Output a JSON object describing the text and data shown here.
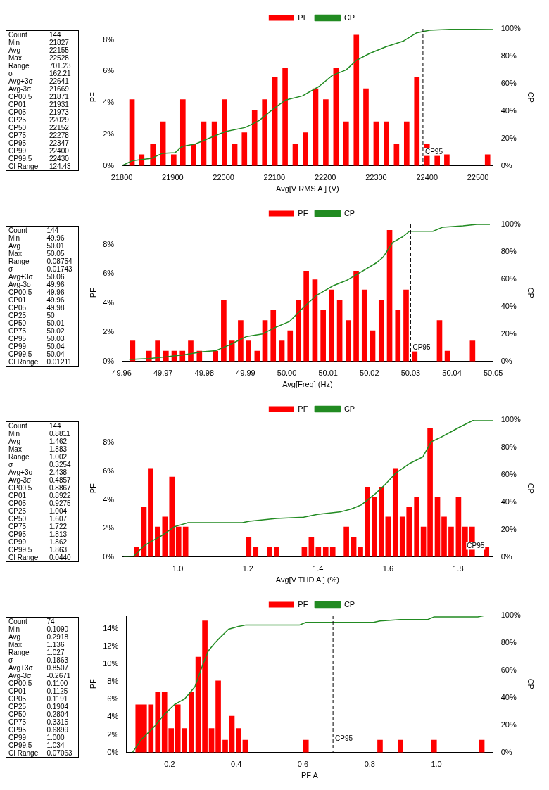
{
  "chart_data": [
    {
      "type": "bar",
      "xlabel": "Avg[V RMS A ] (V)",
      "ylabel": "PF",
      "y2label": "CP",
      "legend": "top",
      "grid": false,
      "marker": "none",
      "xlim": [
        21800,
        22530
      ],
      "xticks": [
        21800,
        21900,
        22000,
        22100,
        22200,
        22300,
        22400,
        22500
      ],
      "ylim": [
        0,
        8.7
      ],
      "yticks": [
        {
          "value": 0,
          "label": "0%"
        },
        {
          "value": 2,
          "label": "2%"
        },
        {
          "value": 4,
          "label": "4%"
        },
        {
          "value": 6,
          "label": "6%"
        },
        {
          "value": 8,
          "label": "8%"
        }
      ],
      "y2lim": [
        0,
        100
      ],
      "y2ticks": [
        {
          "value": 0,
          "label": "0%"
        },
        {
          "value": 20,
          "label": "20%"
        },
        {
          "value": 40,
          "label": "40%"
        },
        {
          "value": 60,
          "label": "60%"
        },
        {
          "value": 80,
          "label": "80%"
        },
        {
          "value": 100,
          "label": "100%"
        }
      ],
      "series": [
        {
          "name": "PF",
          "color": "#ff0000",
          "x": [
            21820,
            21839,
            21861,
            21881,
            21902,
            21920,
            21941,
            21961,
            21982,
            22002,
            22022,
            22041,
            22061,
            22081,
            22101,
            22121,
            22141,
            22161,
            22181,
            22201,
            22221,
            22241,
            22261,
            22280,
            22300,
            22320,
            22340,
            22360,
            22380,
            22400,
            22420,
            22439,
            22519
          ],
          "values": [
            4.2,
            0.7,
            1.4,
            2.8,
            0.7,
            4.2,
            1.4,
            2.8,
            2.8,
            4.2,
            1.4,
            2.1,
            3.5,
            4.2,
            5.6,
            6.2,
            1.4,
            2.1,
            4.9,
            4.2,
            6.2,
            2.8,
            8.3,
            4.9,
            2.8,
            2.8,
            1.4,
            2.8,
            5.6,
            1.4,
            0.7,
            0.7,
            0.7
          ]
        },
        {
          "name": "CP",
          "type": "line",
          "axis": "y2",
          "color": "#228b22",
          "x": [
            21800,
            21820,
            21859,
            21879,
            21905,
            21918,
            21945,
            21984,
            22004,
            22043,
            22070,
            22096,
            22122,
            22155,
            22188,
            22214,
            22241,
            22261,
            22287,
            22320,
            22353,
            22379,
            22405,
            22451,
            22530
          ],
          "values": [
            0,
            3.6,
            5.5,
            9,
            9.6,
            14,
            16,
            22,
            25,
            28,
            33,
            41,
            48,
            51,
            58,
            66,
            70,
            77,
            82,
            87,
            91,
            97,
            99,
            99.7,
            100
          ]
        }
      ],
      "ref_lines": [
        {
          "axis": "x",
          "value": 22392,
          "label": "CP95",
          "line_style": "dashed",
          "color": "#000000"
        }
      ],
      "annotations": [
        "Count 144",
        "Min 21827",
        "Avg 22155",
        "Max 22528",
        "Range 701.23",
        "σ 162.21",
        "Avg+3σ 22641",
        "Avg-3σ 21669",
        "CP00.5 21871",
        "CP01 21931",
        "CP05 21973",
        "CP25 22029",
        "CP50 22152",
        "CP75 22278",
        "CP95 22347",
        "CP99 22400",
        "CP99.5 22430",
        "CI Range 124.43"
      ]
    },
    {
      "type": "bar",
      "xlabel": "Avg[Freq] (Hz)",
      "ylabel": "PF",
      "y2label": "CP",
      "legend": "top",
      "grid": false,
      "marker": "none",
      "xlim": [
        49.96,
        50.05
      ],
      "xticks": [
        {
          "value": 49.96,
          "label": "49.96"
        },
        {
          "value": 49.97,
          "label": "49.97"
        },
        {
          "value": 49.98,
          "label": "49.98"
        },
        {
          "value": 49.99,
          "label": "49.99"
        },
        {
          "value": 50,
          "label": "50.00"
        },
        {
          "value": 50.01,
          "label": "50.01"
        },
        {
          "value": 50.02,
          "label": "50.02"
        },
        {
          "value": 50.03,
          "label": "50.03"
        },
        {
          "value": 50.04,
          "label": "50.04"
        },
        {
          "value": 50.05,
          "label": "50.05"
        }
      ],
      "ylim": [
        0,
        9.4
      ],
      "yticks": [
        {
          "value": 0,
          "label": "0%"
        },
        {
          "value": 2,
          "label": "2%"
        },
        {
          "value": 4,
          "label": "4%"
        },
        {
          "value": 6,
          "label": "6%"
        },
        {
          "value": 8,
          "label": "8%"
        }
      ],
      "y2lim": [
        0,
        100
      ],
      "y2ticks": [
        {
          "value": 0,
          "label": "0%"
        },
        {
          "value": 20,
          "label": "20%"
        },
        {
          "value": 40,
          "label": "40%"
        },
        {
          "value": 60,
          "label": "60%"
        },
        {
          "value": 80,
          "label": "80%"
        },
        {
          "value": 100,
          "label": "100%"
        }
      ],
      "series": [
        {
          "name": "PF",
          "color": "#ff0000",
          "x": [
            49.9626,
            49.9666,
            49.9687,
            49.9707,
            49.9727,
            49.9747,
            49.9767,
            49.9788,
            49.9827,
            49.9847,
            49.9867,
            49.9888,
            49.9907,
            49.9928,
            49.9947,
            49.9967,
            49.9988,
            50.0008,
            50.0028,
            50.0047,
            50.0068,
            50.0088,
            50.0108,
            50.0128,
            50.0149,
            50.0168,
            50.0188,
            50.0208,
            50.0229,
            50.0249,
            50.0269,
            50.0289,
            50.031,
            50.037,
            50.0389,
            50.045
          ],
          "values": [
            1.4,
            0.7,
            1.4,
            0.7,
            0.7,
            0.7,
            1.4,
            0.7,
            0.7,
            4.2,
            1.4,
            2.8,
            1.4,
            0.7,
            2.8,
            3.5,
            1.4,
            2.1,
            4.2,
            6.2,
            5.6,
            3.5,
            4.9,
            4.2,
            2.8,
            6.2,
            4.9,
            2.1,
            4.2,
            9,
            3.5,
            4.9,
            0.7,
            2.8,
            0.7,
            1.4
          ]
        },
        {
          "name": "CP",
          "type": "line",
          "axis": "y2",
          "color": "#228b22",
          "x": [
            49.9618,
            49.9666,
            49.9707,
            49.9747,
            49.9796,
            49.9828,
            49.9861,
            49.9901,
            49.9941,
            49.9974,
            50.0006,
            50.0039,
            50.0071,
            50.0111,
            50.0144,
            50.0184,
            50.0217,
            50.0233,
            50.0257,
            50.0281,
            50.0297,
            50.0354,
            50.0378,
            50.0427,
            50.046,
            50.0492
          ],
          "values": [
            1.3,
            2,
            3.3,
            4.6,
            7,
            7.8,
            12,
            18,
            20,
            25,
            29,
            39,
            48,
            55,
            59,
            66,
            72,
            76,
            87,
            91,
            95,
            95,
            98,
            99,
            100,
            100
          ]
        }
      ],
      "ref_lines": [
        {
          "axis": "x",
          "value": 50.03,
          "label": "CP95",
          "line_style": "dashed",
          "color": "#000000"
        }
      ],
      "annotations": [
        "Count 144",
        "Min 49.96",
        "Avg 50.01",
        "Max 50.05",
        "Range 0.08754",
        "σ 0.01743",
        "Avg+3σ 50.06",
        "Avg-3σ 49.96",
        "CP00.5 49.96",
        "CP01 49.96",
        "CP05 49.98",
        "CP25 50",
        "CP50 50.01",
        "CP75 50.02",
        "CP95 50.03",
        "CP99 50.04",
        "CP99.5 50.04",
        "CI Range 0.01211"
      ]
    },
    {
      "type": "bar",
      "xlabel": "Avg[V THD A ] (%)",
      "ylabel": "PF",
      "y2label": "CP",
      "legend": "top",
      "grid": false,
      "marker": "none",
      "xlim": [
        0.84,
        1.9
      ],
      "xticks": [
        {
          "value": 1,
          "label": "1.0"
        },
        {
          "value": 1.2,
          "label": "1.2"
        },
        {
          "value": 1.4,
          "label": "1.4"
        },
        {
          "value": 1.6,
          "label": "1.6"
        },
        {
          "value": 1.8,
          "label": "1.8"
        }
      ],
      "ylim": [
        0,
        9.6
      ],
      "yticks": [
        {
          "value": 0,
          "label": "0%"
        },
        {
          "value": 2,
          "label": "2%"
        },
        {
          "value": 4,
          "label": "4%"
        },
        {
          "value": 6,
          "label": "6%"
        },
        {
          "value": 8,
          "label": "8%"
        }
      ],
      "y2lim": [
        0,
        100
      ],
      "y2ticks": [
        {
          "value": 0,
          "label": "0%"
        },
        {
          "value": 20,
          "label": "20%"
        },
        {
          "value": 40,
          "label": "40%"
        },
        {
          "value": 60,
          "label": "60%"
        },
        {
          "value": 80,
          "label": "80%"
        },
        {
          "value": 100,
          "label": "100%"
        }
      ],
      "series": [
        {
          "name": "PF",
          "color": "#ff0000",
          "x": [
            0.882,
            0.903,
            0.922,
            0.942,
            0.963,
            0.983,
            1.002,
            1.022,
            1.202,
            1.222,
            1.262,
            1.282,
            1.361,
            1.381,
            1.401,
            1.422,
            1.442,
            1.481,
            1.502,
            1.521,
            1.541,
            1.561,
            1.581,
            1.6,
            1.621,
            1.641,
            1.66,
            1.682,
            1.701,
            1.72,
            1.741,
            1.76,
            1.78,
            1.801,
            1.82,
            1.84,
            1.881
          ],
          "values": [
            0.7,
            3.5,
            6.2,
            2.1,
            2.8,
            5.6,
            2.1,
            2.1,
            1.4,
            0.7,
            0.7,
            0.7,
            0.7,
            1.4,
            0.7,
            0.7,
            0.7,
            2.1,
            1.4,
            0.7,
            4.9,
            4.2,
            4.9,
            2.8,
            6.2,
            2.8,
            3.5,
            4.2,
            2.1,
            9,
            4.2,
            2.8,
            2.1,
            4.2,
            2.1,
            2.1,
            0.7
          ]
        },
        {
          "name": "CP",
          "type": "line",
          "axis": "y2",
          "color": "#228b22",
          "x": [
            0.845,
            0.874,
            0.903,
            0.922,
            0.951,
            0.99,
            1.029,
            1.107,
            1.184,
            1.204,
            1.282,
            1.359,
            1.398,
            1.466,
            1.495,
            1.524,
            1.563,
            1.592,
            1.621,
            1.66,
            1.699,
            1.723,
            1.748,
            1.777,
            1.806,
            1.845,
            1.9
          ],
          "values": [
            0,
            0.5,
            8,
            11,
            15,
            22,
            25,
            25,
            25,
            26,
            28,
            29,
            31,
            33,
            35,
            38,
            46,
            53,
            61,
            68,
            73,
            84,
            87,
            91,
            95,
            100,
            100
          ]
        }
      ],
      "annotations": [
        {
          "text": "CP95",
          "x": 1.85,
          "y": 0.4
        },
        "Count 144",
        "Min 0.8811",
        "Avg 1.462",
        "Max 1.883",
        "Range 1.002",
        "σ 0.3254",
        "Avg+3σ 2.438",
        "Avg-3σ 0.4857",
        "CP00.5 0.8867",
        "CP01 0.8922",
        "CP05 0.9275",
        "CP25 1.004",
        "CP50 1.607",
        "CP75 1.722",
        "CP95 1.813",
        "CP99 1.862",
        "CP99.5 1.863",
        "CI Range 0.0440"
      ]
    },
    {
      "type": "bar",
      "xlabel": "PF A",
      "ylabel": "PF",
      "y2label": "CP",
      "legend": "top",
      "grid": false,
      "marker": "none",
      "xlim": [
        0.07,
        1.17
      ],
      "xticks": [
        {
          "value": 0.2,
          "label": "0.2"
        },
        {
          "value": 0.4,
          "label": "0.4"
        },
        {
          "value": 0.6,
          "label": "0.6"
        },
        {
          "value": 0.8,
          "label": "0.8"
        },
        {
          "value": 1,
          "label": "1.0"
        }
      ],
      "ylim": [
        0,
        15.5
      ],
      "yticks": [
        {
          "value": 0,
          "label": "0%"
        },
        {
          "value": 2,
          "label": "2%"
        },
        {
          "value": 4,
          "label": "4%"
        },
        {
          "value": 6,
          "label": "6%"
        },
        {
          "value": 8,
          "label": "8%"
        },
        {
          "value": 10,
          "label": "10%"
        },
        {
          "value": 12,
          "label": "12%"
        },
        {
          "value": 14,
          "label": "14%"
        }
      ],
      "y2lim": [
        0,
        100
      ],
      "y2ticks": [
        {
          "value": 0,
          "label": "0%"
        },
        {
          "value": 20,
          "label": "20%"
        },
        {
          "value": 40,
          "label": "40%"
        },
        {
          "value": 60,
          "label": "60%"
        },
        {
          "value": 80,
          "label": "80%"
        },
        {
          "value": 100,
          "label": "100%"
        }
      ],
      "series": [
        {
          "name": "PF",
          "color": "#ff0000",
          "x": [
            0.106,
            0.124,
            0.144,
            0.165,
            0.185,
            0.205,
            0.225,
            0.245,
            0.266,
            0.286,
            0.306,
            0.326,
            0.346,
            0.367,
            0.387,
            0.407,
            0.427,
            0.609,
            0.831,
            0.892,
            0.993,
            1.136
          ],
          "values": [
            5.4,
            5.4,
            5.4,
            6.8,
            6.8,
            2.7,
            5.4,
            2.7,
            6.8,
            10.8,
            14.9,
            2.7,
            8.1,
            1.4,
            4.1,
            2.7,
            1.4,
            1.4,
            1.4,
            1.4,
            1.4,
            1.4
          ]
        },
        {
          "name": "CP",
          "type": "line",
          "axis": "y2",
          "color": "#228b22",
          "x": [
            0.089,
            0.114,
            0.155,
            0.185,
            0.215,
            0.245,
            0.276,
            0.301,
            0.316,
            0.336,
            0.352,
            0.377,
            0.407,
            0.427,
            0.589,
            0.609,
            0.811,
            0.831,
            0.892,
            0.973,
            0.993,
            1.124,
            1.145,
            1.17
          ],
          "values": [
            0,
            9,
            19,
            28,
            35,
            39,
            48,
            65,
            74,
            80,
            84,
            90,
            92,
            93,
            93,
            95,
            95,
            96,
            97,
            97,
            99,
            99,
            100,
            100
          ]
        }
      ],
      "ref_lines": [
        {
          "axis": "x",
          "value": 0.69,
          "label": "CP95",
          "line_style": "dashed",
          "color": "#000000"
        }
      ],
      "annotations": [
        "Count 74",
        "Min 0.1090",
        "Avg 0.2918",
        "Max 1.136",
        "Range 1.027",
        "σ 0.1863",
        "Avg+3σ 0.8507",
        "Avg-3σ -0.2671",
        "CP00.5 0.1100",
        "CP01 0.1125",
        "CP05 0.1191",
        "CP25 0.1904",
        "CP50 0.2804",
        "CP75 0.3315",
        "CP95 0.6899",
        "CP99 1.000",
        "CP99.5 1.034",
        "CI Range 0.07063"
      ]
    }
  ]
}
